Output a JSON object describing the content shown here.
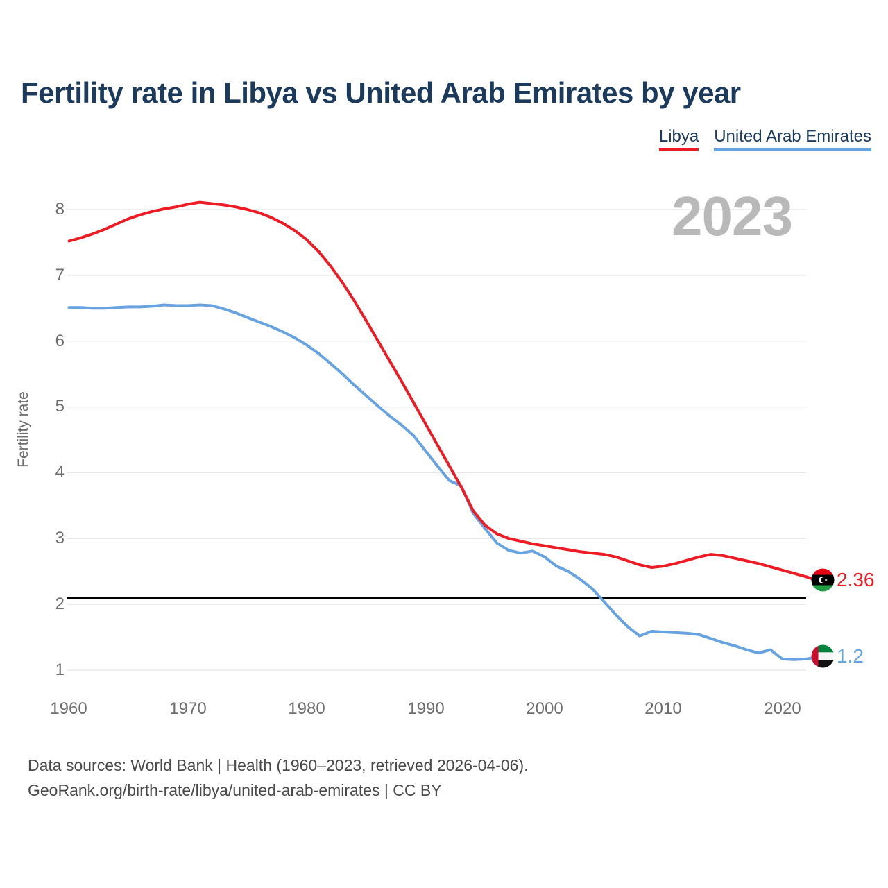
{
  "title": "Fertility rate in Libya vs United Arab Emirates by year",
  "watermark": "2023",
  "legend": [
    {
      "label": "Libya",
      "color": "#ed1c24"
    },
    {
      "label": "United Arab Emirates",
      "color": "#66a3e0"
    }
  ],
  "end_labels": [
    {
      "country": "Libya",
      "value": "2.36",
      "flag": "libya-flag"
    },
    {
      "country": "United Arab Emirates",
      "value": "1.2",
      "flag": "uae-flag"
    }
  ],
  "footer": {
    "line1": "Data sources: World Bank | Health (1960–2023, retrieved 2026-04-06).",
    "line2": "GeoRank.org/birth-rate/libya/united-arab-emirates | CC BY"
  },
  "chart_data": {
    "type": "line",
    "title": "Fertility rate in Libya vs United Arab Emirates by year",
    "xlabel": "",
    "ylabel": "Fertility rate",
    "x_ticks": [
      "1960",
      "1970",
      "1980",
      "1990",
      "2000",
      "2010",
      "2020"
    ],
    "y_ticks": [
      8,
      7,
      6,
      5,
      4,
      3,
      2,
      1
    ],
    "ylim": [
      0.65,
      8.45
    ],
    "grid": true,
    "grid_color": "#e8e8e8",
    "legend_position": "top-right",
    "reference_line": {
      "value": 2.1,
      "color": "#000000"
    },
    "years": [
      1960,
      1961,
      1962,
      1963,
      1964,
      1965,
      1966,
      1967,
      1968,
      1969,
      1970,
      1971,
      1972,
      1973,
      1974,
      1975,
      1976,
      1977,
      1978,
      1979,
      1980,
      1981,
      1982,
      1983,
      1984,
      1985,
      1986,
      1987,
      1988,
      1989,
      1990,
      1991,
      1992,
      1993,
      1994,
      1995,
      1996,
      1997,
      1998,
      1999,
      2000,
      2001,
      2002,
      2003,
      2004,
      2005,
      2006,
      2007,
      2008,
      2009,
      2010,
      2011,
      2012,
      2013,
      2014,
      2015,
      2016,
      2017,
      2018,
      2019,
      2020,
      2021,
      2022,
      2023
    ],
    "series": [
      {
        "name": "Libya",
        "color": "#ed1c24",
        "final_value": 2.36,
        "values": [
          7.52,
          7.57,
          7.63,
          7.7,
          7.78,
          7.86,
          7.92,
          7.97,
          8.01,
          8.04,
          8.08,
          8.11,
          8.09,
          8.07,
          8.04,
          8.0,
          7.95,
          7.88,
          7.79,
          7.68,
          7.54,
          7.36,
          7.14,
          6.89,
          6.61,
          6.31,
          6.0,
          5.69,
          5.38,
          5.06,
          4.74,
          4.42,
          4.1,
          3.78,
          3.42,
          3.2,
          3.07,
          3.0,
          2.96,
          2.92,
          2.89,
          2.86,
          2.83,
          2.8,
          2.78,
          2.76,
          2.72,
          2.66,
          2.6,
          2.56,
          2.58,
          2.62,
          2.67,
          2.72,
          2.76,
          2.74,
          2.7,
          2.66,
          2.62,
          2.57,
          2.52,
          2.47,
          2.42,
          2.36
        ]
      },
      {
        "name": "United Arab Emirates",
        "color": "#66a3e0",
        "final_value": 1.2,
        "values": [
          6.51,
          6.51,
          6.5,
          6.5,
          6.51,
          6.52,
          6.52,
          6.53,
          6.55,
          6.54,
          6.54,
          6.55,
          6.54,
          6.49,
          6.43,
          6.36,
          6.29,
          6.22,
          6.14,
          6.05,
          5.94,
          5.81,
          5.66,
          5.5,
          5.33,
          5.17,
          5.01,
          4.86,
          4.72,
          4.56,
          4.33,
          4.1,
          3.88,
          3.8,
          3.38,
          3.15,
          2.93,
          2.82,
          2.78,
          2.81,
          2.72,
          2.58,
          2.5,
          2.38,
          2.24,
          2.04,
          1.84,
          1.66,
          1.52,
          1.59,
          1.58,
          1.57,
          1.56,
          1.54,
          1.48,
          1.42,
          1.37,
          1.31,
          1.26,
          1.31,
          1.17,
          1.16,
          1.17,
          1.2
        ]
      }
    ]
  }
}
